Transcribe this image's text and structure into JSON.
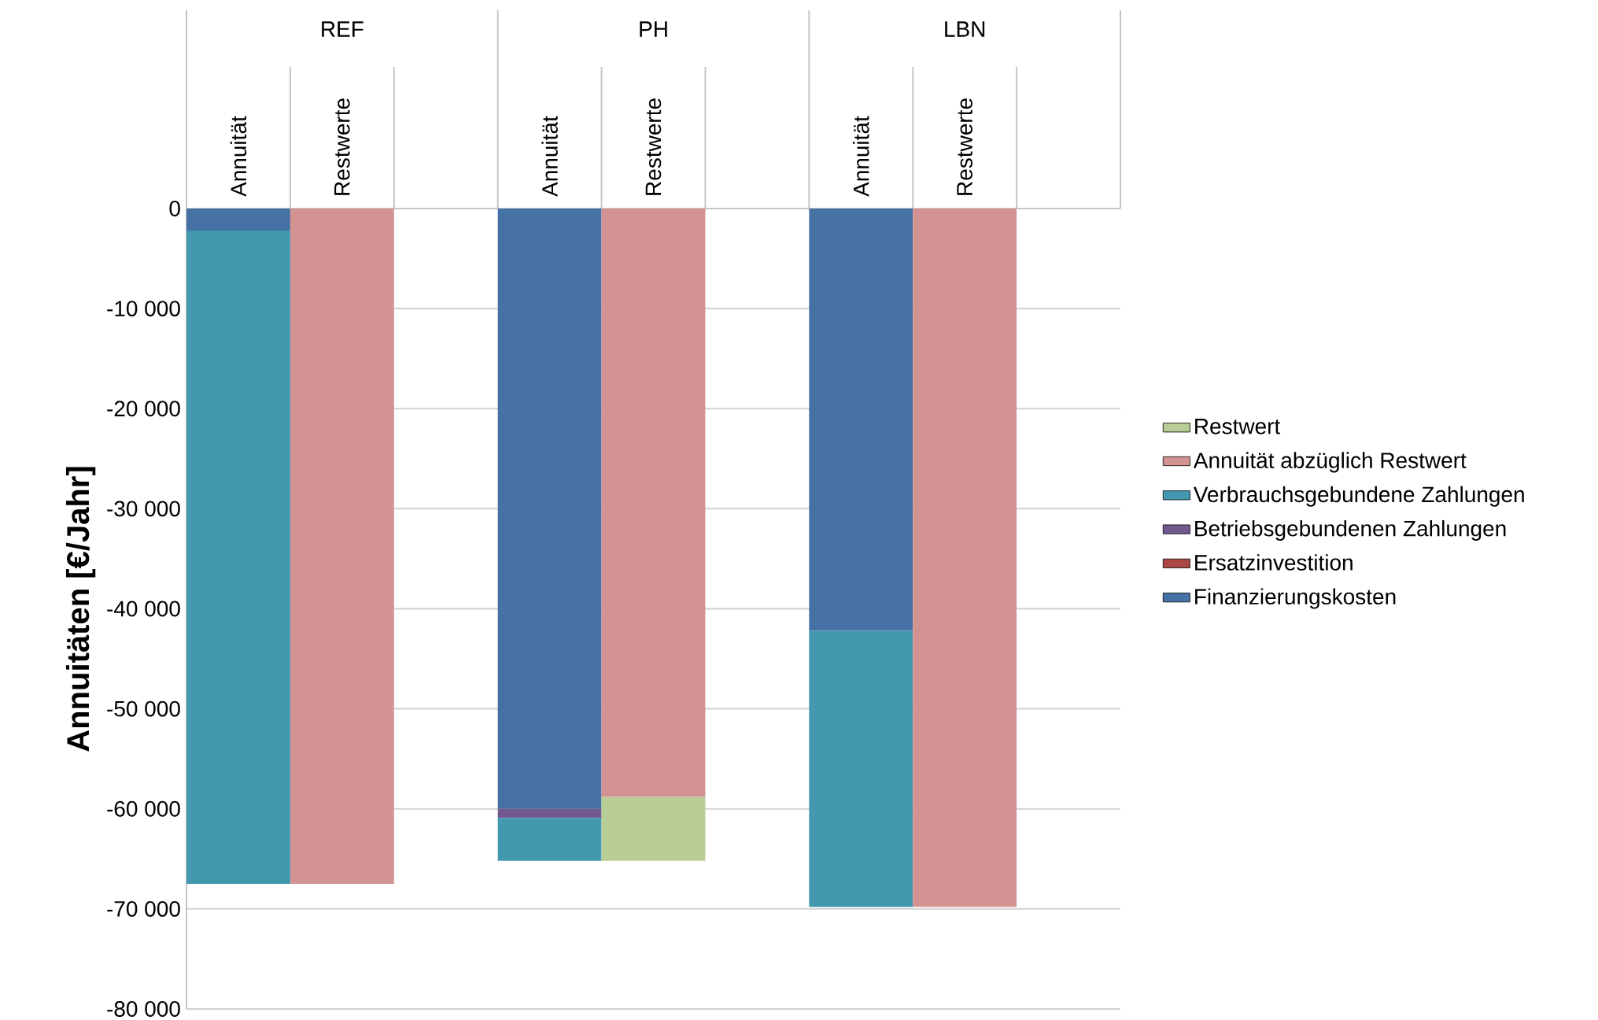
{
  "chart_data": {
    "type": "bar",
    "stacked": true,
    "ylabel": "Annuitäten [€/Jahr]",
    "categories": [
      "Annuität",
      "Restwerte",
      null,
      "Annuität",
      "Restwerte",
      null,
      "Annuität",
      "Restwerte",
      null
    ],
    "annotations": [
      "REF",
      "PH",
      "LBN"
    ],
    "series": [
      {
        "name": "Finanzierungskosten",
        "color": "#4571a5",
        "values": [
          -2200,
          null,
          null,
          -60000,
          null,
          null,
          -42200,
          null,
          null
        ]
      },
      {
        "name": "Ersatzinvestition",
        "color": "#aa4643",
        "values": [
          null,
          null,
          null,
          null,
          null,
          null,
          null,
          null,
          null
        ]
      },
      {
        "name": "Betriebsgebundenen Zahlungen",
        "color": "#71588f",
        "values": [
          null,
          null,
          null,
          -900,
          null,
          null,
          null,
          null,
          null
        ]
      },
      {
        "name": "Verbrauchsgebundene Zahlungen",
        "color": "#4198af",
        "values": [
          -65300,
          null,
          null,
          -4300,
          null,
          null,
          -27600,
          null,
          null
        ]
      },
      {
        "name": "Annuität abzüglich Restwert",
        "color": "#d39393",
        "values": [
          null,
          -67500,
          null,
          null,
          -58800,
          null,
          null,
          -69800,
          null
        ]
      },
      {
        "name": "Restwert",
        "color": "#b9ce96",
        "values": [
          null,
          null,
          null,
          null,
          -6400,
          null,
          null,
          null,
          null
        ]
      }
    ],
    "ylim": [
      -80000,
      0
    ],
    "yticks": [
      {
        "value": -80000,
        "label": "-80 000"
      },
      {
        "value": -70000,
        "label": "-70 000"
      },
      {
        "value": -60000,
        "label": "-60 000"
      },
      {
        "value": -50000,
        "label": "-50 000"
      },
      {
        "value": -40000,
        "label": "-40 000"
      },
      {
        "value": -30000,
        "label": "-30 000"
      },
      {
        "value": -20000,
        "label": "-20 000"
      },
      {
        "value": -10000,
        "label": "-10 000"
      },
      0
    ],
    "grid": "y",
    "legend": "right"
  }
}
